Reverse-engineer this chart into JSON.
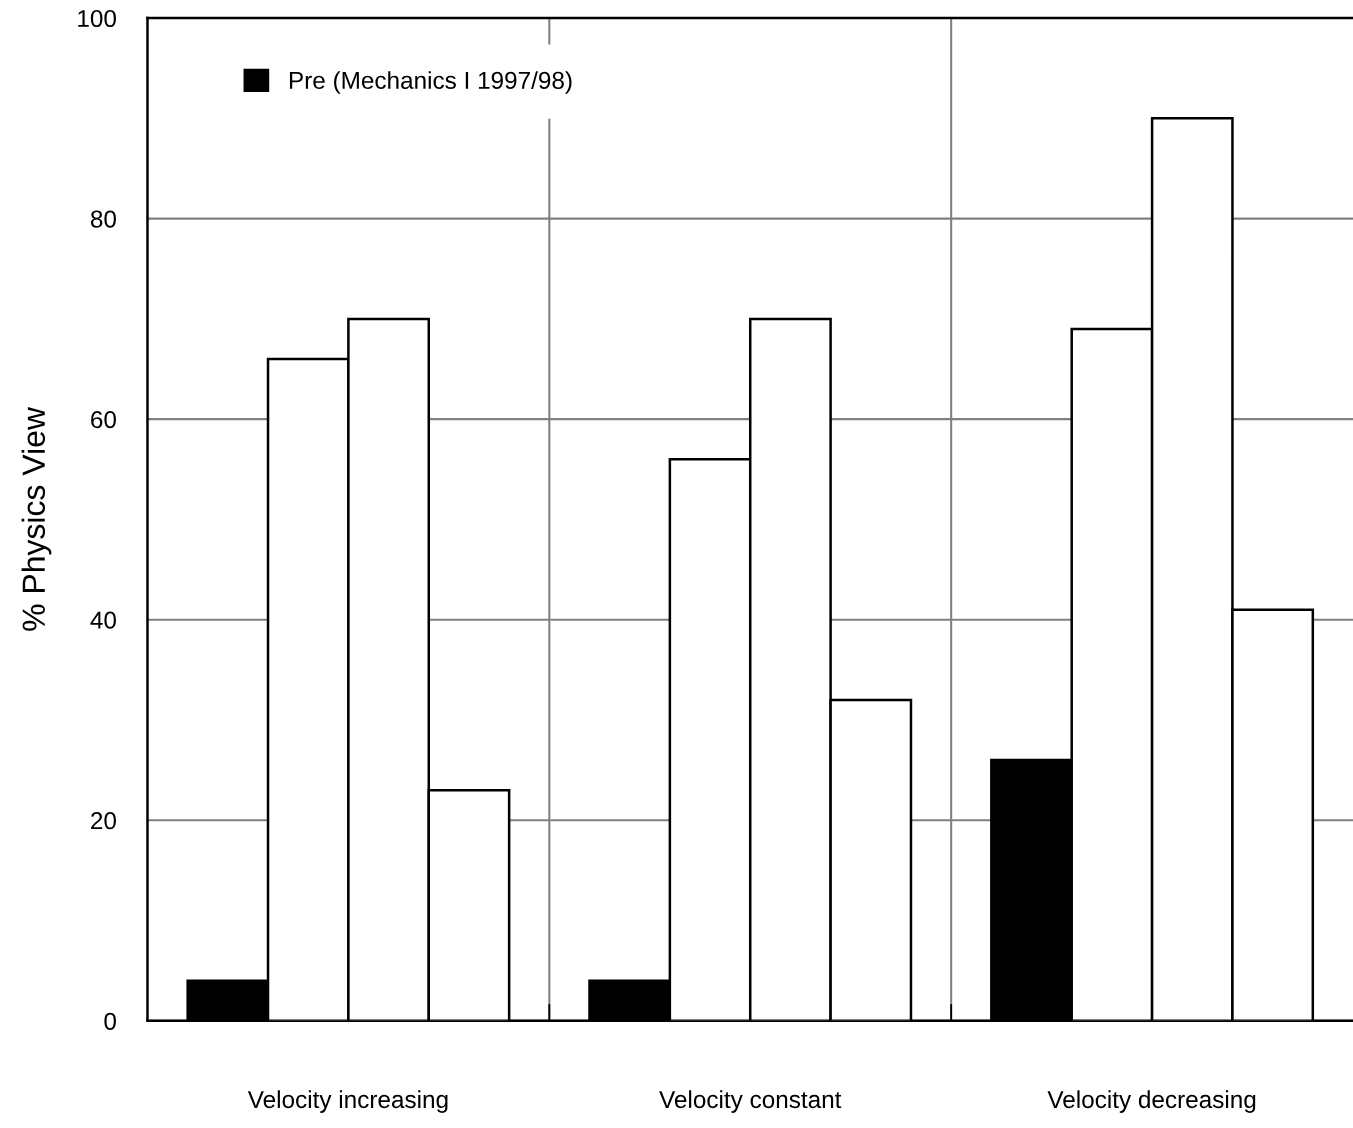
{
  "chart_data": {
    "type": "bar",
    "ylabel": "% Physics View",
    "categories": [
      "Velocity increasing",
      "Velocity constant",
      "Velocity decreasing"
    ],
    "series": [
      {
        "name": "Pre (Mechanics I 1997/98)",
        "color": "#000000",
        "values": [
          4,
          4,
          26
        ]
      },
      {
        "color": "#ffffff",
        "values": [
          66,
          56,
          69
        ]
      },
      {
        "color": "#ffffff",
        "values": [
          70,
          70,
          90
        ]
      },
      {
        "color": "#ffffff",
        "values": [
          23,
          32,
          41
        ]
      }
    ],
    "ylim": [
      0,
      100
    ],
    "yticks": [
      0,
      20,
      40,
      60,
      80,
      100
    ],
    "grid": true,
    "legend": "top left"
  }
}
